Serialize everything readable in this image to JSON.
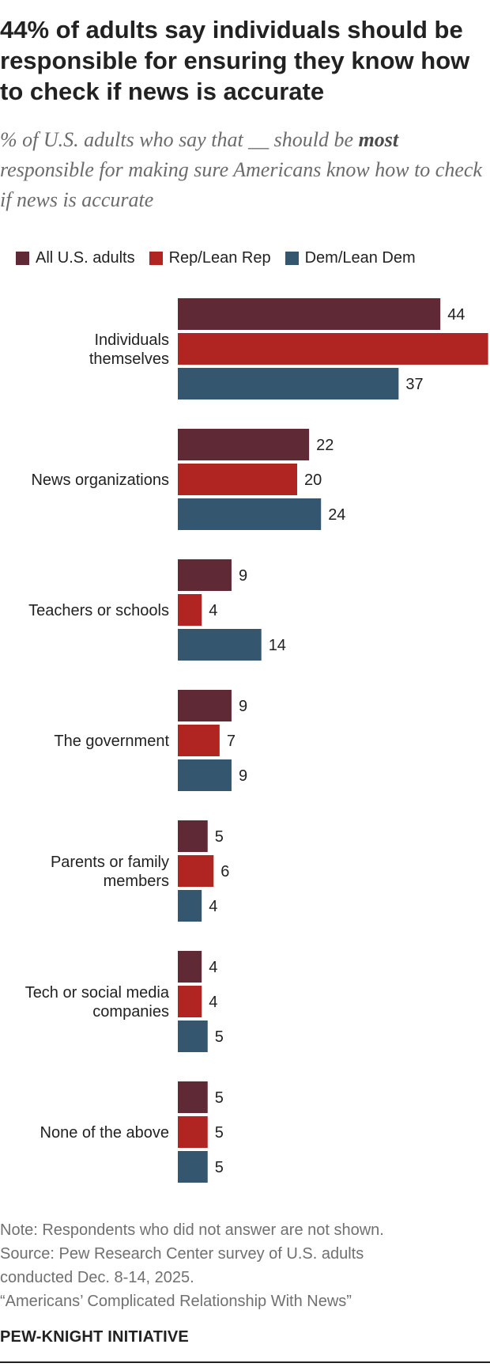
{
  "header": {
    "title": "44% of adults say individuals should be responsible for ensuring they know how to check if news is accurate",
    "subtitle_before": "% of U.S. adults who say that __ should be ",
    "subtitle_emphasis": "most",
    "subtitle_after": " responsible for making sure Americans know how to check if news is accurate"
  },
  "footer": {
    "note": "Note: Respondents who did not answer are not shown.",
    "source_line1": "Source: Pew Research Center survey of U.S. adults",
    "source_line2": "conducted Dec. 8-14, 2025.",
    "report": "“Americans’ Complicated Relationship With News”",
    "brand": "PEW-KNIGHT INITIATIVE"
  },
  "chart_data": {
    "type": "bar",
    "orientation": "horizontal",
    "categories": [
      "Individuals themselves",
      "News organizations",
      "Teachers or schools",
      "The government",
      "Parents or family members",
      "Tech or social media companies",
      "None of the above"
    ],
    "series": [
      {
        "name": "All U.S. adults",
        "color": "#5f2a36",
        "values": [
          44,
          22,
          9,
          9,
          5,
          4,
          5
        ]
      },
      {
        "name": "Rep/Lean Rep",
        "color": "#b02421",
        "values": [
          52,
          20,
          4,
          7,
          6,
          4,
          5
        ]
      },
      {
        "name": "Dem/Lean Dem",
        "color": "#34576f",
        "values": [
          37,
          24,
          14,
          9,
          4,
          5,
          5
        ]
      }
    ],
    "xlim": [
      0,
      60
    ],
    "legend_position": "top",
    "grid": false,
    "data_labels": true
  }
}
